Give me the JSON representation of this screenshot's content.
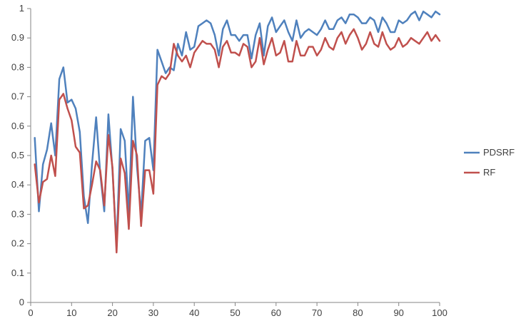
{
  "chart_data": {
    "type": "line",
    "title": "",
    "xlabel": "",
    "ylabel": "",
    "xlim": [
      0,
      100
    ],
    "ylim": [
      0,
      1
    ],
    "x_ticks": [
      0,
      10,
      20,
      30,
      40,
      50,
      60,
      70,
      80,
      90,
      100
    ],
    "x_tick_labels": [
      "0",
      "10",
      "20",
      "30",
      "40",
      "50",
      "60",
      "70",
      "80",
      "90",
      "100"
    ],
    "y_ticks": [
      0,
      0.1,
      0.2,
      0.3,
      0.4,
      0.5,
      0.6,
      0.7,
      0.8,
      0.9,
      1
    ],
    "y_tick_labels": [
      "0",
      "0.1",
      "0.2",
      "0.3",
      "0.4",
      "0.5",
      "0.6",
      "0.7",
      "0.8",
      "0.9",
      "1"
    ],
    "grid": false,
    "legend_position": "right",
    "x": [
      1,
      2,
      3,
      4,
      5,
      6,
      7,
      8,
      9,
      10,
      11,
      12,
      13,
      14,
      15,
      16,
      17,
      18,
      19,
      20,
      21,
      22,
      23,
      24,
      25,
      26,
      27,
      28,
      29,
      30,
      31,
      32,
      33,
      34,
      35,
      36,
      37,
      38,
      39,
      40,
      41,
      42,
      43,
      44,
      45,
      46,
      47,
      48,
      49,
      50,
      51,
      52,
      53,
      54,
      55,
      56,
      57,
      58,
      59,
      60,
      61,
      62,
      63,
      64,
      65,
      66,
      67,
      68,
      69,
      70,
      71,
      72,
      73,
      74,
      75,
      76,
      77,
      78,
      79,
      80,
      81,
      82,
      83,
      84,
      85,
      86,
      87,
      88,
      89,
      90,
      91,
      92,
      93,
      94,
      95,
      96,
      97,
      98,
      99,
      100
    ],
    "series": [
      {
        "name": "PDSRF",
        "color": "#4f81bd",
        "values": [
          0.56,
          0.31,
          0.47,
          0.52,
          0.61,
          0.5,
          0.76,
          0.8,
          0.68,
          0.69,
          0.66,
          0.58,
          0.36,
          0.27,
          0.47,
          0.63,
          0.44,
          0.31,
          0.64,
          0.45,
          0.19,
          0.59,
          0.55,
          0.3,
          0.7,
          0.46,
          0.3,
          0.55,
          0.56,
          0.45,
          0.86,
          0.82,
          0.78,
          0.8,
          0.79,
          0.88,
          0.84,
          0.92,
          0.86,
          0.87,
          0.94,
          0.95,
          0.96,
          0.95,
          0.91,
          0.84,
          0.93,
          0.96,
          0.91,
          0.91,
          0.89,
          0.91,
          0.91,
          0.83,
          0.91,
          0.95,
          0.84,
          0.94,
          0.97,
          0.92,
          0.94,
          0.96,
          0.92,
          0.89,
          0.96,
          0.9,
          0.92,
          0.93,
          0.92,
          0.91,
          0.93,
          0.96,
          0.93,
          0.93,
          0.96,
          0.97,
          0.95,
          0.98,
          0.98,
          0.97,
          0.95,
          0.95,
          0.97,
          0.96,
          0.92,
          0.97,
          0.95,
          0.92,
          0.92,
          0.96,
          0.95,
          0.96,
          0.98,
          0.99,
          0.96,
          0.99,
          0.98,
          0.97,
          0.99,
          0.98
        ]
      },
      {
        "name": "RF",
        "color": "#c0504d",
        "values": [
          0.47,
          0.34,
          0.41,
          0.42,
          0.5,
          0.43,
          0.69,
          0.71,
          0.66,
          0.62,
          0.53,
          0.51,
          0.32,
          0.33,
          0.4,
          0.48,
          0.45,
          0.33,
          0.57,
          0.46,
          0.17,
          0.49,
          0.44,
          0.25,
          0.55,
          0.5,
          0.26,
          0.45,
          0.45,
          0.37,
          0.74,
          0.77,
          0.76,
          0.78,
          0.88,
          0.84,
          0.82,
          0.84,
          0.8,
          0.85,
          0.87,
          0.89,
          0.88,
          0.88,
          0.86,
          0.8,
          0.87,
          0.89,
          0.85,
          0.85,
          0.84,
          0.88,
          0.87,
          0.8,
          0.82,
          0.9,
          0.81,
          0.86,
          0.9,
          0.84,
          0.85,
          0.89,
          0.82,
          0.82,
          0.89,
          0.84,
          0.84,
          0.87,
          0.87,
          0.84,
          0.86,
          0.9,
          0.87,
          0.86,
          0.9,
          0.92,
          0.88,
          0.91,
          0.93,
          0.9,
          0.86,
          0.88,
          0.92,
          0.88,
          0.87,
          0.92,
          0.88,
          0.86,
          0.87,
          0.9,
          0.87,
          0.88,
          0.9,
          0.89,
          0.88,
          0.9,
          0.92,
          0.89,
          0.91,
          0.89
        ]
      }
    ]
  }
}
